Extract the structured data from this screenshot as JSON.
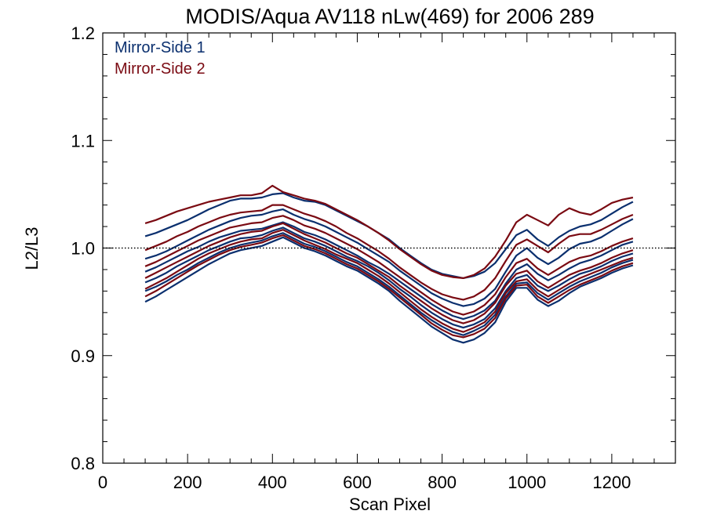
{
  "chart_data": {
    "type": "line",
    "title": "MODIS/Aqua AV118 nLw(469) for 2006 289",
    "xlabel": "Scan Pixel",
    "ylabel": "L2/L3",
    "xlim": [
      0,
      1350
    ],
    "ylim": [
      0.8,
      1.2
    ],
    "x_ticks": [
      "0",
      "200",
      "400",
      "600",
      "800",
      "1000",
      "1200"
    ],
    "y_ticks": [
      "0.8",
      "0.9",
      "1.0",
      "1.1",
      "1.2"
    ],
    "reference_line": 1.0,
    "grid": false,
    "legend_position": "top-left",
    "colors": {
      "Mirror-Side 1": "#0a2f6e",
      "Mirror-Side 2": "#7a0a12"
    },
    "legend": [
      "Mirror-Side 1",
      "Mirror-Side 2"
    ],
    "x": [
      100,
      125,
      150,
      175,
      200,
      225,
      250,
      275,
      300,
      325,
      350,
      375,
      400,
      425,
      450,
      475,
      500,
      525,
      550,
      575,
      600,
      625,
      650,
      675,
      700,
      725,
      750,
      775,
      800,
      825,
      850,
      875,
      900,
      925,
      950,
      975,
      1000,
      1025,
      1050,
      1075,
      1100,
      1125,
      1150,
      1175,
      1200,
      1225,
      1250
    ],
    "series": [
      {
        "name": "Mirror-Side 1",
        "values": [
          1.011,
          1.014,
          1.018,
          1.022,
          1.026,
          1.031,
          1.036,
          1.04,
          1.044,
          1.046,
          1.046,
          1.047,
          1.05,
          1.051,
          1.047,
          1.044,
          1.043,
          1.04,
          1.035,
          1.03,
          1.025,
          1.02,
          1.014,
          1.008,
          1.0,
          0.993,
          0.986,
          0.98,
          0.976,
          0.974,
          0.972,
          0.974,
          0.978,
          0.986,
          0.999,
          1.012,
          1.017,
          1.008,
          1.002,
          1.01,
          1.016,
          1.02,
          1.022,
          1.026,
          1.032,
          1.038,
          1.043
        ]
      },
      {
        "name": "Mirror-Side 1",
        "values": [
          0.99,
          0.993,
          0.997,
          1.002,
          1.007,
          1.012,
          1.017,
          1.021,
          1.025,
          1.028,
          1.03,
          1.031,
          1.034,
          1.036,
          1.031,
          1.027,
          1.024,
          1.02,
          1.015,
          1.01,
          1.005,
          0.999,
          0.993,
          0.987,
          0.979,
          0.972,
          0.965,
          0.958,
          0.953,
          0.949,
          0.946,
          0.948,
          0.953,
          0.962,
          0.978,
          0.993,
          1.0,
          0.991,
          0.985,
          0.991,
          0.999,
          1.004,
          1.006,
          1.01,
          1.016,
          1.022,
          1.027
        ]
      },
      {
        "name": "Mirror-Side 1",
        "values": [
          0.978,
          0.982,
          0.987,
          0.992,
          0.997,
          1.001,
          1.006,
          1.01,
          1.013,
          1.016,
          1.017,
          1.018,
          1.021,
          1.024,
          1.02,
          1.015,
          1.012,
          1.008,
          1.003,
          0.998,
          0.993,
          0.987,
          0.982,
          0.976,
          0.969,
          0.962,
          0.955,
          0.948,
          0.942,
          0.937,
          0.934,
          0.937,
          0.942,
          0.951,
          0.967,
          0.98,
          0.985,
          0.976,
          0.97,
          0.975,
          0.981,
          0.986,
          0.989,
          0.993,
          0.998,
          1.003,
          1.006
        ]
      },
      {
        "name": "Mirror-Side 1",
        "values": [
          0.968,
          0.972,
          0.977,
          0.983,
          0.988,
          0.993,
          0.998,
          1.002,
          1.006,
          1.009,
          1.01,
          1.012,
          1.016,
          1.019,
          1.014,
          1.009,
          1.006,
          1.002,
          0.997,
          0.992,
          0.988,
          0.983,
          0.977,
          0.97,
          0.962,
          0.955,
          0.947,
          0.94,
          0.934,
          0.929,
          0.926,
          0.929,
          0.934,
          0.944,
          0.96,
          0.972,
          0.975,
          0.965,
          0.96,
          0.965,
          0.971,
          0.976,
          0.979,
          0.983,
          0.988,
          0.992,
          0.995
        ]
      },
      {
        "name": "Mirror-Side 1",
        "values": [
          0.96,
          0.964,
          0.969,
          0.975,
          0.98,
          0.986,
          0.991,
          0.996,
          1.0,
          1.003,
          1.005,
          1.007,
          1.011,
          1.014,
          1.009,
          1.004,
          1.001,
          0.997,
          0.992,
          0.987,
          0.983,
          0.977,
          0.971,
          0.964,
          0.956,
          0.948,
          0.94,
          0.933,
          0.927,
          0.922,
          0.919,
          0.923,
          0.928,
          0.938,
          0.955,
          0.967,
          0.968,
          0.958,
          0.952,
          0.958,
          0.964,
          0.969,
          0.973,
          0.977,
          0.982,
          0.986,
          0.989
        ]
      },
      {
        "name": "Mirror-Side 1",
        "values": [
          0.95,
          0.955,
          0.961,
          0.967,
          0.973,
          0.979,
          0.985,
          0.99,
          0.995,
          0.998,
          1.0,
          1.002,
          1.006,
          1.01,
          1.005,
          1.0,
          0.997,
          0.993,
          0.988,
          0.983,
          0.979,
          0.973,
          0.967,
          0.96,
          0.951,
          0.943,
          0.935,
          0.927,
          0.921,
          0.915,
          0.912,
          0.915,
          0.921,
          0.931,
          0.95,
          0.963,
          0.963,
          0.952,
          0.946,
          0.951,
          0.958,
          0.964,
          0.968,
          0.972,
          0.977,
          0.981,
          0.984
        ]
      },
      {
        "name": "Mirror-Side 2",
        "values": [
          1.023,
          1.026,
          1.03,
          1.034,
          1.037,
          1.04,
          1.043,
          1.045,
          1.047,
          1.049,
          1.049,
          1.051,
          1.058,
          1.052,
          1.049,
          1.046,
          1.044,
          1.041,
          1.036,
          1.031,
          1.026,
          1.02,
          1.014,
          1.007,
          0.999,
          0.992,
          0.985,
          0.979,
          0.975,
          0.973,
          0.972,
          0.975,
          0.981,
          0.992,
          1.007,
          1.024,
          1.031,
          1.026,
          1.021,
          1.031,
          1.037,
          1.033,
          1.031,
          1.036,
          1.042,
          1.045,
          1.047
        ]
      },
      {
        "name": "Mirror-Side 2",
        "values": [
          0.998,
          1.002,
          1.006,
          1.011,
          1.015,
          1.02,
          1.024,
          1.028,
          1.031,
          1.033,
          1.034,
          1.035,
          1.04,
          1.04,
          1.036,
          1.032,
          1.029,
          1.025,
          1.02,
          1.014,
          1.009,
          1.003,
          0.997,
          0.99,
          0.982,
          0.975,
          0.968,
          0.962,
          0.957,
          0.954,
          0.952,
          0.955,
          0.961,
          0.972,
          0.988,
          1.003,
          1.008,
          1.002,
          0.996,
          1.004,
          1.011,
          1.013,
          1.013,
          1.017,
          1.022,
          1.027,
          1.031
        ]
      },
      {
        "name": "Mirror-Side 2",
        "values": [
          0.983,
          0.987,
          0.992,
          0.997,
          1.002,
          1.007,
          1.011,
          1.015,
          1.019,
          1.021,
          1.023,
          1.024,
          1.028,
          1.03,
          1.026,
          1.021,
          1.018,
          1.014,
          1.009,
          1.004,
          0.999,
          0.993,
          0.987,
          0.98,
          0.973,
          0.966,
          0.959,
          0.952,
          0.946,
          0.941,
          0.938,
          0.941,
          0.947,
          0.957,
          0.973,
          0.986,
          0.99,
          0.981,
          0.975,
          0.981,
          0.987,
          0.991,
          0.993,
          0.997,
          1.002,
          1.006,
          1.009
        ]
      },
      {
        "name": "Mirror-Side 2",
        "values": [
          0.972,
          0.977,
          0.982,
          0.987,
          0.992,
          0.997,
          1.002,
          1.006,
          1.01,
          1.013,
          1.015,
          1.016,
          1.02,
          1.023,
          1.018,
          1.013,
          1.009,
          1.005,
          1.0,
          0.995,
          0.991,
          0.985,
          0.979,
          0.973,
          0.965,
          0.958,
          0.951,
          0.944,
          0.938,
          0.933,
          0.93,
          0.933,
          0.939,
          0.949,
          0.965,
          0.976,
          0.979,
          0.969,
          0.963,
          0.969,
          0.975,
          0.979,
          0.982,
          0.986,
          0.991,
          0.995,
          0.998
        ]
      },
      {
        "name": "Mirror-Side 2",
        "values": [
          0.962,
          0.967,
          0.972,
          0.978,
          0.984,
          0.99,
          0.995,
          0.999,
          1.003,
          1.006,
          1.008,
          1.009,
          1.014,
          1.017,
          1.012,
          1.007,
          1.003,
          0.999,
          0.994,
          0.99,
          0.986,
          0.98,
          0.974,
          0.967,
          0.959,
          0.951,
          0.943,
          0.936,
          0.93,
          0.925,
          0.922,
          0.926,
          0.931,
          0.941,
          0.958,
          0.969,
          0.971,
          0.961,
          0.955,
          0.961,
          0.967,
          0.972,
          0.976,
          0.98,
          0.984,
          0.988,
          0.991
        ]
      },
      {
        "name": "Mirror-Side 2",
        "values": [
          0.955,
          0.96,
          0.966,
          0.972,
          0.978,
          0.984,
          0.989,
          0.994,
          0.998,
          1.001,
          1.003,
          1.005,
          1.009,
          1.012,
          1.007,
          1.002,
          0.999,
          0.995,
          0.99,
          0.985,
          0.981,
          0.975,
          0.969,
          0.962,
          0.954,
          0.946,
          0.938,
          0.93,
          0.924,
          0.919,
          0.917,
          0.92,
          0.925,
          0.935,
          0.953,
          0.965,
          0.966,
          0.955,
          0.949,
          0.955,
          0.961,
          0.966,
          0.97,
          0.974,
          0.979,
          0.983,
          0.986
        ]
      }
    ]
  }
}
